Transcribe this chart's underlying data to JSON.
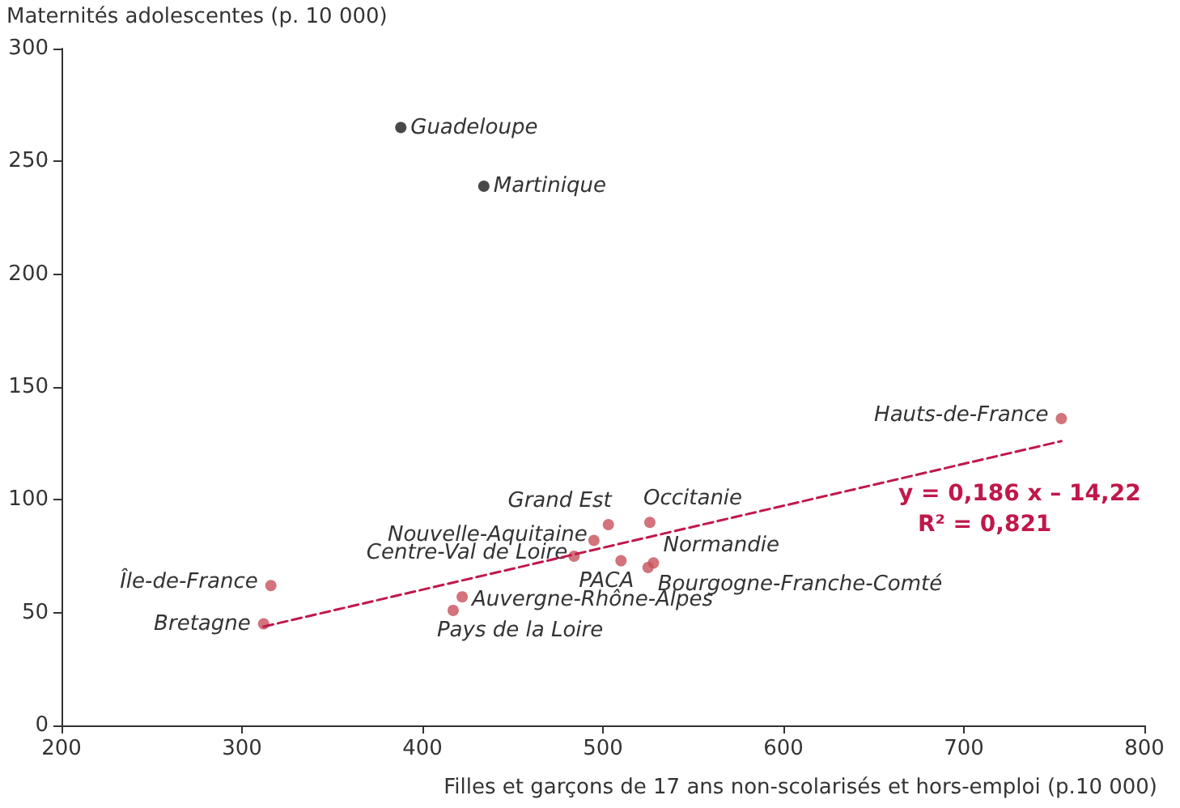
{
  "chart_data": {
    "type": "scatter",
    "xlabel": "Filles et garçons de 17 ans non-scolarisés et hors-emploi (p.10 000)",
    "ylabel": "Maternités adolescentes (p. 10 000)",
    "xlim": [
      200,
      800
    ],
    "xticks": [
      200,
      300,
      400,
      500,
      600,
      700,
      800
    ],
    "ylim": [
      0,
      300
    ],
    "yticks": [
      0,
      50,
      100,
      150,
      200,
      250,
      300
    ],
    "grid": false,
    "marker": "circle",
    "series": [
      {
        "color": "#1a1a1a",
        "x": [
          388,
          434
        ],
        "values": [
          265,
          239
        ]
      },
      {
        "color": "#c8505a",
        "x": [
          754,
          316,
          312,
          503,
          526,
          495,
          484,
          510,
          528,
          525,
          422,
          417
        ],
        "values": [
          136,
          62,
          45,
          89,
          90,
          82,
          75,
          73,
          72,
          70,
          57,
          51
        ]
      },
      {
        "type": "line",
        "color": "#c0184a",
        "line_style": "dashed",
        "marker": "none",
        "x": [
          312,
          754
        ],
        "values": [
          43.8,
          126
        ]
      }
    ],
    "annotations": [
      {
        "text": "Guadeloupe",
        "x": 388,
        "y": 265
      },
      {
        "text": "Martinique",
        "x": 434,
        "y": 239
      },
      {
        "text": "Hauts-de-France",
        "x": 754,
        "y": 136
      },
      {
        "text": "Île-de-France",
        "x": 316,
        "y": 62
      },
      {
        "text": "Bretagne",
        "x": 312,
        "y": 45
      },
      {
        "text": "Grand Est",
        "x": 503,
        "y": 89
      },
      {
        "text": "Occitanie",
        "x": 526,
        "y": 90
      },
      {
        "text": "Nouvelle-Aquitaine",
        "x": 495,
        "y": 82
      },
      {
        "text": "Centre-Val de Loire",
        "x": 484,
        "y": 75
      },
      {
        "text": "PACA",
        "x": 510,
        "y": 73
      },
      {
        "text": "Normandie",
        "x": 528,
        "y": 72
      },
      {
        "text": "Bourgogne-Franche-Comté",
        "x": 525,
        "y": 70
      },
      {
        "text": "Auvergne-Rhône-Alpes",
        "x": 422,
        "y": 57
      },
      {
        "text": "Pays de la Loire",
        "x": 417,
        "y": 51
      },
      "y = 0,186 x – 14,22",
      "R² = 0,821"
    ]
  }
}
